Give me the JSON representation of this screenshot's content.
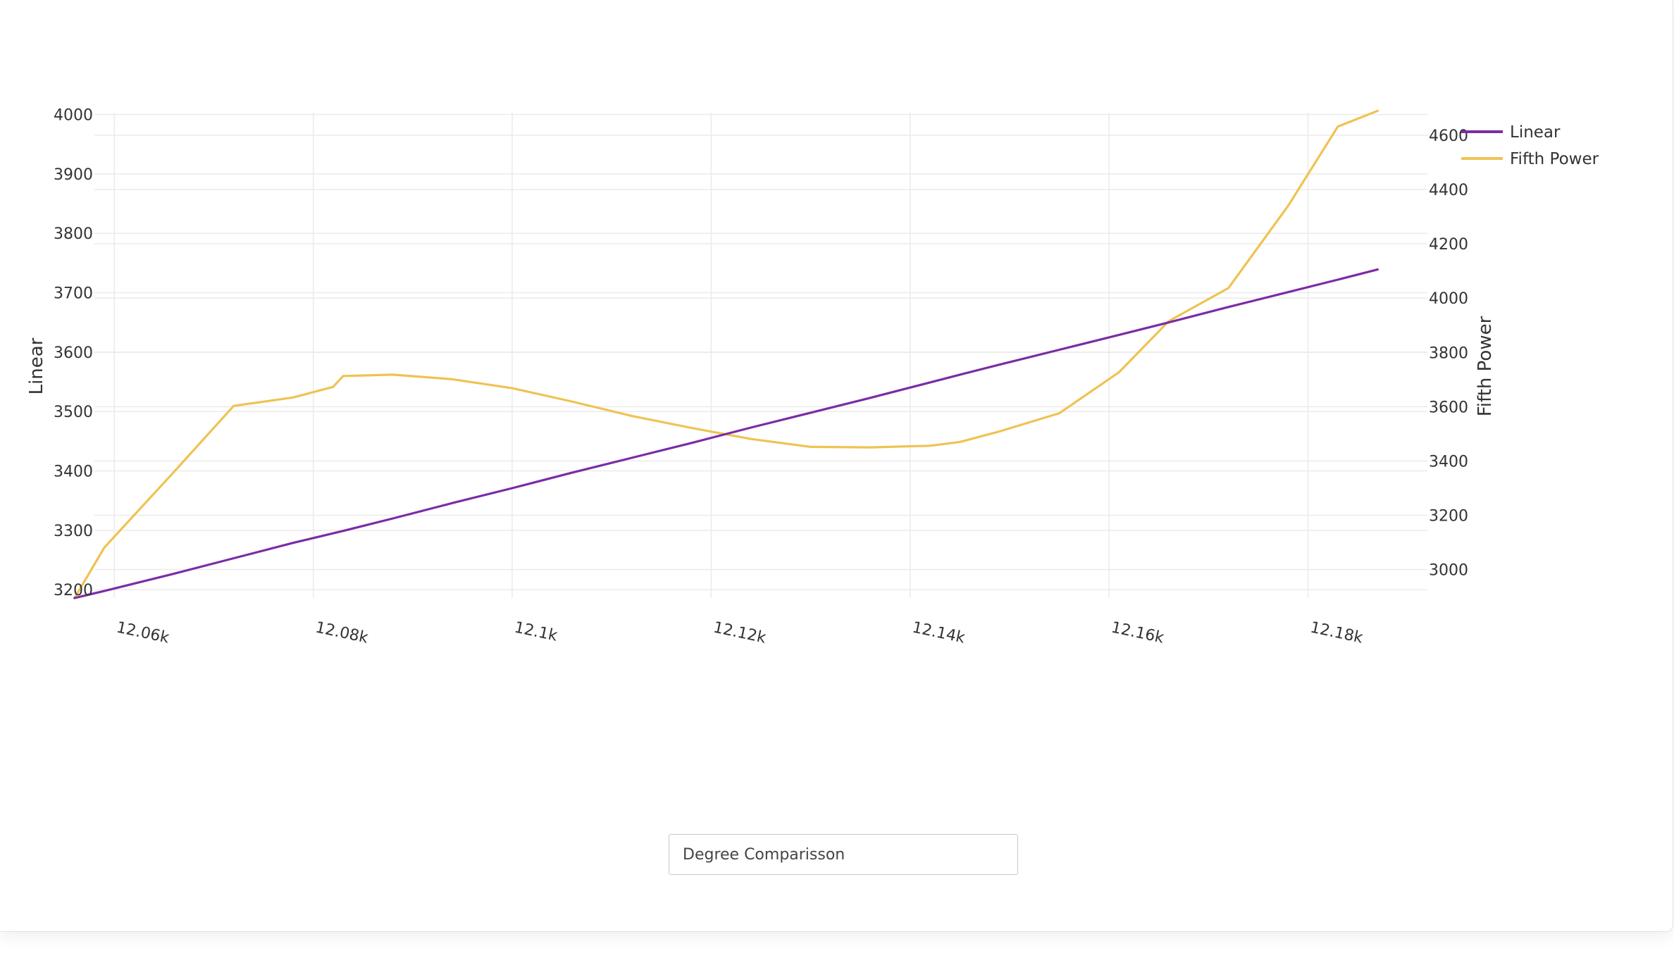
{
  "chart_data": {
    "type": "line",
    "x": [
      12056,
      12059,
      12066,
      12072,
      12078,
      12082,
      12083,
      12088,
      12094,
      12100,
      12106,
      12112,
      12118,
      12124,
      12130,
      12136,
      12142,
      12145,
      12149,
      12155,
      12161,
      12166,
      12172,
      12178,
      12183,
      12187
    ],
    "series": [
      {
        "name": "Linear",
        "axis": "y",
        "color": "#7b2ca6",
        "values": [
          3186,
          3198,
          3227,
          3253,
          3279,
          3295,
          3299,
          3320,
          3346,
          3371,
          3397,
          3422,
          3447,
          3473,
          3498,
          3523,
          3549,
          3562,
          3579,
          3604,
          3629,
          3650,
          3676,
          3701,
          3722,
          3739
        ]
      },
      {
        "name": "Fifth Power",
        "axis": "y2",
        "color": "#efc352",
        "values": [
          2895,
          3081,
          3360,
          3603,
          3634,
          3673,
          3713,
          3718,
          3701,
          3668,
          3619,
          3566,
          3522,
          3481,
          3452,
          3450,
          3456,
          3470,
          3509,
          3576,
          3727,
          3915,
          4037,
          4340,
          4632,
          4690
        ]
      }
    ],
    "x_ticks": [
      "12.06k",
      "12.08k",
      "12.1k",
      "12.12k",
      "12.14k",
      "12.16k",
      "12.18k"
    ],
    "x_tick_values": [
      12060,
      12080,
      12100,
      12120,
      12140,
      12160,
      12180
    ],
    "xlim": [
      12058,
      12192
    ],
    "ylabel": "Linear",
    "ylim": [
      3186,
      4003
    ],
    "y_ticks": [
      3200,
      3300,
      3400,
      3500,
      3600,
      3700,
      3800,
      3900,
      4000
    ],
    "y2label": "Fifth Power",
    "y2lim": [
      2895,
      4683
    ],
    "y2_ticks": [
      3000,
      3200,
      3400,
      3600,
      3800,
      4000,
      4200,
      4400,
      4600
    ],
    "grid": true,
    "legend_position": "top-right"
  },
  "dropdown": {
    "selected": "Degree Comparisson"
  }
}
